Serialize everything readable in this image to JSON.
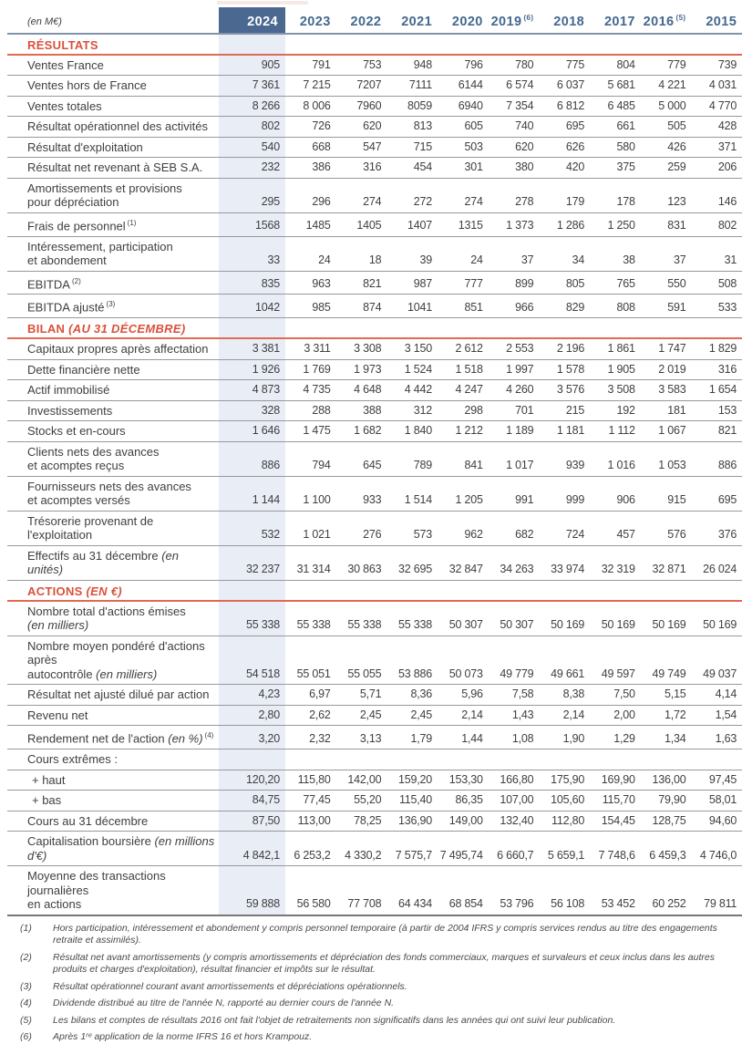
{
  "theme": {
    "accent_red": "#d9513b",
    "rule_red": "#e06a54",
    "header_bg": "#4a6890",
    "highlight_bg": "#e9edf5",
    "year_text": "#44688f",
    "body_text": "#3f3f3f"
  },
  "table": {
    "unit_label": "(en M€)",
    "columns": [
      {
        "label": "2024",
        "sup": "",
        "highlight": true
      },
      {
        "label": "2023",
        "sup": ""
      },
      {
        "label": "2022",
        "sup": ""
      },
      {
        "label": "2021",
        "sup": ""
      },
      {
        "label": "2020",
        "sup": ""
      },
      {
        "label": "2019",
        "sup": "(6)"
      },
      {
        "label": "2018",
        "sup": ""
      },
      {
        "label": "2017",
        "sup": ""
      },
      {
        "label": "2016",
        "sup": "(5)"
      },
      {
        "label": "2015",
        "sup": ""
      }
    ],
    "sections": [
      {
        "title": [
          [
            "RÉSULTATS",
            "n"
          ]
        ],
        "rows": [
          {
            "label": [
              [
                "Ventes France",
                "n"
              ]
            ],
            "values": [
              "905",
              "791",
              "753",
              "948",
              "796",
              "780",
              "775",
              "804",
              "779",
              "739"
            ]
          },
          {
            "label": [
              [
                "Ventes hors de France",
                "n"
              ]
            ],
            "values": [
              "7 361",
              "7 215",
              "7207",
              "7111",
              "6144",
              "6 574",
              "6 037",
              "5 681",
              "4 221",
              "4 031"
            ]
          },
          {
            "label": [
              [
                "Ventes totales",
                "n"
              ]
            ],
            "values": [
              "8 266",
              "8 006",
              "7960",
              "8059",
              "6940",
              "7 354",
              "6 812",
              "6 485",
              "5 000",
              "4 770"
            ]
          },
          {
            "label": [
              [
                "Résultat opérationnel des activités",
                "n"
              ]
            ],
            "values": [
              "802",
              "726",
              "620",
              "813",
              "605",
              "740",
              "695",
              "661",
              "505",
              "428"
            ]
          },
          {
            "label": [
              [
                "Résultat d'exploitation",
                "n"
              ]
            ],
            "values": [
              "540",
              "668",
              "547",
              "715",
              "503",
              "620",
              "626",
              "580",
              "426",
              "371"
            ]
          },
          {
            "label": [
              [
                "Résultat net revenant à SEB S.A.",
                "n"
              ]
            ],
            "values": [
              "232",
              "386",
              "316",
              "454",
              "301",
              "380",
              "420",
              "375",
              "259",
              "206"
            ]
          },
          {
            "label": [
              [
                "Amortissements et provisions",
                "n"
              ],
              [
                "",
                "br"
              ],
              [
                "pour dépréciation",
                "n"
              ]
            ],
            "values": [
              "295",
              "296",
              "274",
              "272",
              "274",
              "278",
              "179",
              "178",
              "123",
              "146"
            ]
          },
          {
            "label": [
              [
                "Frais de personnel",
                "n"
              ],
              [
                "(1)",
                "s"
              ]
            ],
            "values": [
              "1568",
              "1485",
              "1405",
              "1407",
              "1315",
              "1 373",
              "1 286",
              "1 250",
              "831",
              "802"
            ]
          },
          {
            "label": [
              [
                "Intéressement, participation",
                "n"
              ],
              [
                "",
                "br"
              ],
              [
                "et abondement",
                "n"
              ]
            ],
            "values": [
              "33",
              "24",
              "18",
              "39",
              "24",
              "37",
              "34",
              "38",
              "37",
              "31"
            ]
          },
          {
            "label": [
              [
                "EBITDA",
                "n"
              ],
              [
                "(2)",
                "s"
              ]
            ],
            "values": [
              "835",
              "963",
              "821",
              "987",
              "777",
              "899",
              "805",
              "765",
              "550",
              "508"
            ]
          },
          {
            "label": [
              [
                "EBITDA ajusté",
                "n"
              ],
              [
                "(3)",
                "s"
              ]
            ],
            "values": [
              "1042",
              "985",
              "874",
              "1041",
              "851",
              "966",
              "829",
              "808",
              "591",
              "533"
            ]
          }
        ]
      },
      {
        "title": [
          [
            "BILAN ",
            "n"
          ],
          [
            "(AU 31 DÉCEMBRE)",
            "i"
          ]
        ],
        "rows": [
          {
            "label": [
              [
                "Capitaux propres après affectation",
                "n"
              ]
            ],
            "values": [
              "3 381",
              "3 311",
              "3 308",
              "3 150",
              "2 612",
              "2 553",
              "2 196",
              "1 861",
              "1 747",
              "1 829"
            ]
          },
          {
            "label": [
              [
                "Dette financière nette",
                "n"
              ]
            ],
            "values": [
              "1 926",
              "1 769",
              "1 973",
              "1 524",
              "1 518",
              "1 997",
              "1 578",
              "1 905",
              "2 019",
              "316"
            ]
          },
          {
            "label": [
              [
                "Actif immobilisé",
                "n"
              ]
            ],
            "values": [
              "4 873",
              "4 735",
              "4 648",
              "4 442",
              "4 247",
              "4 260",
              "3 576",
              "3 508",
              "3 583",
              "1 654"
            ]
          },
          {
            "label": [
              [
                "Investissements",
                "n"
              ]
            ],
            "values": [
              "328",
              "288",
              "388",
              "312",
              "298",
              "701",
              "215",
              "192",
              "181",
              "153"
            ]
          },
          {
            "label": [
              [
                "Stocks et en-cours",
                "n"
              ]
            ],
            "values": [
              "1 646",
              "1 475",
              "1 682",
              "1 840",
              "1 212",
              "1 189",
              "1 181",
              "1 112",
              "1 067",
              "821"
            ]
          },
          {
            "label": [
              [
                "Clients nets des avances",
                "n"
              ],
              [
                "",
                "br"
              ],
              [
                "et acomptes reçus",
                "n"
              ]
            ],
            "values": [
              "886",
              "794",
              "645",
              "789",
              "841",
              "1 017",
              "939",
              "1 016",
              "1 053",
              "886"
            ]
          },
          {
            "label": [
              [
                "Fournisseurs nets des avances",
                "n"
              ],
              [
                "",
                "br"
              ],
              [
                "et acomptes versés",
                "n"
              ]
            ],
            "values": [
              "1 144",
              "1 100",
              "933",
              "1 514",
              "1 205",
              "991",
              "999",
              "906",
              "915",
              "695"
            ]
          },
          {
            "label": [
              [
                "Trésorerie provenant de l'exploitation",
                "n"
              ]
            ],
            "values": [
              "532",
              "1 021",
              "276",
              "573",
              "962",
              "682",
              "724",
              "457",
              "576",
              "376"
            ]
          },
          {
            "label": [
              [
                "Effectifs au 31 décembre ",
                "n"
              ],
              [
                "(en unités)",
                "i"
              ]
            ],
            "values": [
              "32 237",
              "31 314",
              "30 863",
              "32 695",
              "32 847",
              "34 263",
              "33 974",
              "32 319",
              "32 871",
              "26 024"
            ]
          }
        ]
      },
      {
        "title": [
          [
            "ACTIONS ",
            "n"
          ],
          [
            "(EN €)",
            "i"
          ]
        ],
        "rows": [
          {
            "label": [
              [
                "Nombre total d'actions émises",
                "n"
              ],
              [
                "",
                "br"
              ],
              [
                "(en milliers)",
                "i"
              ]
            ],
            "values": [
              "55 338",
              "55 338",
              "55 338",
              "55 338",
              "50 307",
              "50 307",
              "50 169",
              "50 169",
              "50 169",
              "50 169"
            ]
          },
          {
            "label": [
              [
                "Nombre moyen pondéré d'actions après",
                "n"
              ],
              [
                "",
                "br"
              ],
              [
                "autocontrôle ",
                "n"
              ],
              [
                "(en milliers)",
                "i"
              ]
            ],
            "values": [
              "54 518",
              "55 051",
              "55 055",
              "53 886",
              "50 073",
              "49 779",
              "49 661",
              "49 597",
              "49 749",
              "49 037"
            ]
          },
          {
            "label": [
              [
                "Résultat net ajusté dilué par action",
                "n"
              ]
            ],
            "values": [
              "4,23",
              "6,97",
              "5,71",
              "8,36",
              "5,96",
              "7,58",
              "8,38",
              "7,50",
              "5,15",
              "4,14"
            ]
          },
          {
            "label": [
              [
                "Revenu net",
                "n"
              ]
            ],
            "values": [
              "2,80",
              "2,62",
              "2,45",
              "2,45",
              "2,14",
              "1,43",
              "2,14",
              "2,00",
              "1,72",
              "1,54"
            ]
          },
          {
            "label": [
              [
                "Rendement net de l'action ",
                "n"
              ],
              [
                "(en %)",
                "i"
              ],
              [
                "(4)",
                "s"
              ]
            ],
            "values": [
              "3,20",
              "2,32",
              "3,13",
              "1,79",
              "1,44",
              "1,08",
              "1,90",
              "1,29",
              "1,34",
              "1,63"
            ]
          },
          {
            "label": [
              [
                "Cours extrêmes :",
                "n"
              ]
            ],
            "values": [
              "",
              "",
              "",
              "",
              "",
              "",
              "",
              "",
              "",
              ""
            ]
          },
          {
            "label": [
              [
                "+ haut",
                "n"
              ]
            ],
            "indent": true,
            "values": [
              "120,20",
              "115,80",
              "142,00",
              "159,20",
              "153,30",
              "166,80",
              "175,90",
              "169,90",
              "136,00",
              "97,45"
            ]
          },
          {
            "label": [
              [
                "+ bas",
                "n"
              ]
            ],
            "indent": true,
            "values": [
              "84,75",
              "77,45",
              "55,20",
              "115,40",
              "86,35",
              "107,00",
              "105,60",
              "115,70",
              "79,90",
              "58,01"
            ]
          },
          {
            "label": [
              [
                "Cours au 31 décembre",
                "n"
              ]
            ],
            "values": [
              "87,50",
              "113,00",
              "78,25",
              "136,90",
              "149,00",
              "132,40",
              "112,80",
              "154,45",
              "128,75",
              "94,60"
            ]
          },
          {
            "label": [
              [
                "Capitalisation boursière ",
                "n"
              ],
              [
                "(en millions d'€)",
                "i"
              ]
            ],
            "values": [
              "4 842,1",
              "6 253,2",
              "4 330,2",
              "7 575,7",
              "7 495,74",
              "6 660,7",
              "5 659,1",
              "7 748,6",
              "6 459,3",
              "4 746,0"
            ]
          },
          {
            "label": [
              [
                "Moyenne des transactions journalières",
                "n"
              ],
              [
                "",
                "br"
              ],
              [
                "en actions",
                "n"
              ]
            ],
            "values": [
              "59 888",
              "56 580",
              "77 708",
              "64 434",
              "68 854",
              "53 796",
              "56 108",
              "53 452",
              "60 252",
              "79 811"
            ]
          }
        ]
      }
    ]
  },
  "footnotes": [
    {
      "num": "(1)",
      "text": "Hors participation, intéressement et abondement y compris personnel temporaire (à partir de 2004 IFRS y compris services rendus au titre des engagements retraite et assimilés)."
    },
    {
      "num": "(2)",
      "text": "Résultat net avant amortissements (y compris amortissements et dépréciation des fonds commerciaux, marques et survaleurs et ceux inclus dans les autres produits et charges d'exploitation), résultat financier et impôts sur le résultat."
    },
    {
      "num": "(3)",
      "text": "Résultat opérationnel courant avant amortissements et dépréciations opérationnels."
    },
    {
      "num": "(4)",
      "text": "Dividende distribué au titre de l'année N, rapporté au dernier cours de l'année N."
    },
    {
      "num": "(5)",
      "text": "Les bilans et comptes de résultats 2016 ont fait l'objet de retraitements non significatifs dans les années qui ont suivi leur publication."
    },
    {
      "num": "(6)",
      "text": "Après 1ʳᵉ application de la norme IFRS 16 et hors Krampouz."
    }
  ]
}
